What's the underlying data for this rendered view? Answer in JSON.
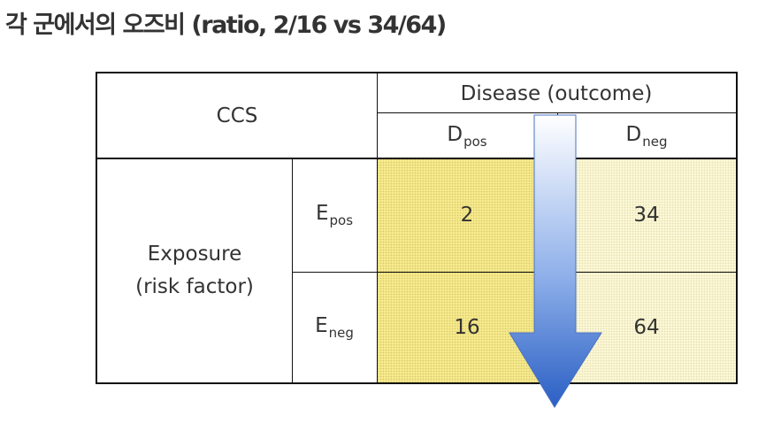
{
  "title": "각 군에서의 오즈비 (ratio, 2/16 vs 34/64)",
  "table": {
    "corner_label": "CCS",
    "disease_header": "Disease (outcome)",
    "d_pos": {
      "main": "D",
      "sub": "pos"
    },
    "d_neg": {
      "main": "D",
      "sub": "neg"
    },
    "exposure_line1": "Exposure",
    "exposure_line2": "(risk factor)",
    "e_pos": {
      "main": "E",
      "sub": "pos"
    },
    "e_neg": {
      "main": "E",
      "sub": "neg"
    },
    "cells": {
      "e_pos_d_pos": "2",
      "e_pos_d_neg": "34",
      "e_neg_d_pos": "16",
      "e_neg_d_neg": "64"
    }
  },
  "colors": {
    "cell_fill_dpos": "#f6e98c",
    "cell_fill_dneg": "#fbf7d5",
    "arrow_top": "#ffffff",
    "arrow_bottom": "#2a5fc4",
    "border": "#111111"
  },
  "icons": {
    "direction_arrow": "arrow-down-icon"
  }
}
